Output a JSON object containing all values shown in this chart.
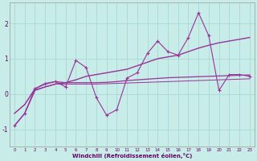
{
  "xlabel": "Windchill (Refroidissement éolien,°C)",
  "background_color": "#c8ece8",
  "line_color": "#993399",
  "grid_color": "#a8d8d8",
  "xlim": [
    -0.5,
    23.5
  ],
  "ylim": [
    -1.5,
    2.6
  ],
  "x_data": [
    0,
    1,
    2,
    3,
    4,
    5,
    6,
    7,
    8,
    9,
    10,
    11,
    12,
    13,
    14,
    15,
    16,
    17,
    18,
    19,
    20,
    21,
    22,
    23
  ],
  "y_jagged": [
    -0.9,
    -0.55,
    0.15,
    0.3,
    0.35,
    0.2,
    0.95,
    0.75,
    -0.1,
    -0.6,
    -0.45,
    0.45,
    0.6,
    1.15,
    1.5,
    1.2,
    1.1,
    1.6,
    2.3,
    1.65,
    0.1,
    0.55,
    0.55,
    0.5
  ],
  "y_trend": [
    -0.9,
    -0.55,
    0.1,
    0.2,
    0.28,
    0.32,
    0.4,
    0.5,
    0.55,
    0.6,
    0.65,
    0.7,
    0.8,
    0.9,
    1.0,
    1.05,
    1.1,
    1.2,
    1.3,
    1.38,
    1.45,
    1.5,
    1.55,
    1.6
  ],
  "y_upper_flat": [
    -0.55,
    -0.3,
    0.15,
    0.28,
    0.35,
    0.32,
    0.32,
    0.32,
    0.32,
    0.33,
    0.35,
    0.38,
    0.4,
    0.42,
    0.44,
    0.46,
    0.47,
    0.48,
    0.49,
    0.5,
    0.51,
    0.52,
    0.53,
    0.54
  ],
  "y_lower_flat": [
    -0.55,
    -0.3,
    0.12,
    0.2,
    0.28,
    0.28,
    0.28,
    0.28,
    0.28,
    0.29,
    0.3,
    0.31,
    0.32,
    0.33,
    0.34,
    0.35,
    0.36,
    0.37,
    0.38,
    0.39,
    0.4,
    0.41,
    0.42,
    0.43
  ],
  "yticks": [
    -1,
    0,
    1,
    2
  ],
  "xticks": [
    0,
    1,
    2,
    3,
    4,
    5,
    6,
    7,
    8,
    9,
    10,
    11,
    12,
    13,
    14,
    15,
    16,
    17,
    18,
    19,
    20,
    21,
    22,
    23
  ]
}
